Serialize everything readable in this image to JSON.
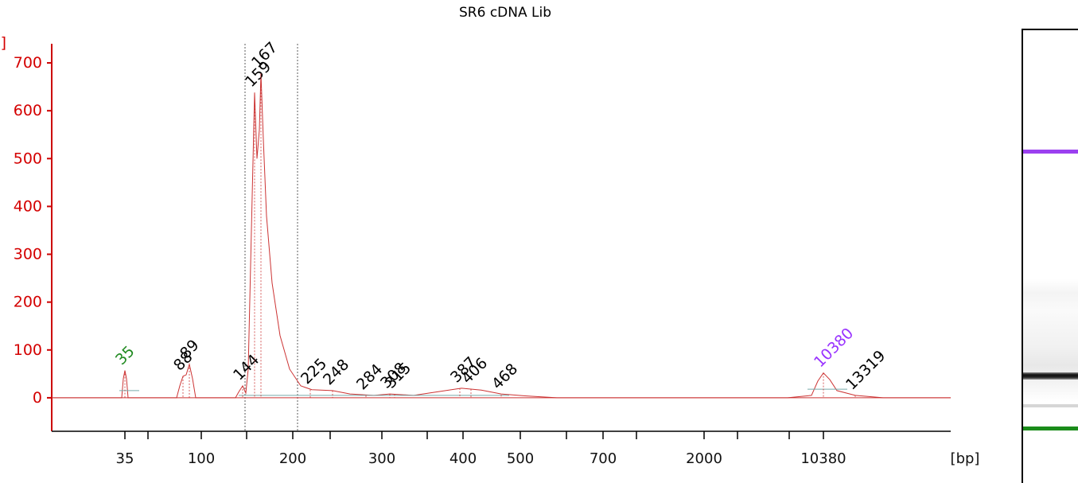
{
  "chart_data": {
    "type": "line",
    "title": "SR6 cDNA Lib",
    "ylabel": "[FU]",
    "xlabel": "[bp]",
    "ylim": [
      -70,
      740
    ],
    "y_ticks": [
      0,
      100,
      200,
      300,
      400,
      500,
      600,
      700
    ],
    "x_ticks": [
      "35",
      "100",
      "200",
      "300",
      "400",
      "500",
      "700",
      "2000",
      "10380"
    ],
    "grid": false,
    "series": [
      {
        "color": "#cc3333",
        "points": [
          [
            "35",
            0
          ],
          [
            "35",
            57
          ],
          [
            "35",
            2
          ],
          [
            "88",
            45
          ],
          [
            "89",
            70
          ],
          [
            "89",
            3
          ],
          [
            "144",
            25
          ],
          [
            "159",
            638
          ],
          [
            "167",
            678
          ],
          [
            "225",
            17
          ],
          [
            "248",
            15
          ],
          [
            "284",
            5
          ],
          [
            "308",
            8
          ],
          [
            "315",
            8
          ],
          [
            "387",
            20
          ],
          [
            "406",
            18
          ],
          [
            "468",
            6
          ],
          [
            "10380",
            52
          ],
          [
            "13319",
            5
          ]
        ]
      }
    ],
    "peaks": [
      {
        "label": "35",
        "value": 57,
        "color": "#228b22"
      },
      {
        "label": "88",
        "value": 45,
        "color": "#000000"
      },
      {
        "label": "89",
        "value": 70,
        "color": "#000000"
      },
      {
        "label": "144",
        "value": 25,
        "color": "#000000"
      },
      {
        "label": "159",
        "value": 638,
        "color": "#000000"
      },
      {
        "label": "167",
        "value": 678,
        "color": "#000000"
      },
      {
        "label": "225",
        "value": 17,
        "color": "#000000"
      },
      {
        "label": "248",
        "value": 15,
        "color": "#000000"
      },
      {
        "label": "284",
        "value": 5,
        "color": "#000000"
      },
      {
        "label": "308",
        "value": 8,
        "color": "#000000"
      },
      {
        "label": "315",
        "value": 8,
        "color": "#000000"
      },
      {
        "label": "387",
        "value": 20,
        "color": "#000000"
      },
      {
        "label": "406",
        "value": 18,
        "color": "#000000"
      },
      {
        "label": "468",
        "value": 6,
        "color": "#000000"
      },
      {
        "label": "10380",
        "value": 52,
        "color": "#9933ff"
      },
      {
        "label": "13319",
        "value": 5,
        "color": "#000000"
      }
    ],
    "colors": {
      "axis": "#cc0000",
      "trace": "#cc3333",
      "lower_marker": "#228b22",
      "upper_marker": "#9933ff"
    }
  }
}
